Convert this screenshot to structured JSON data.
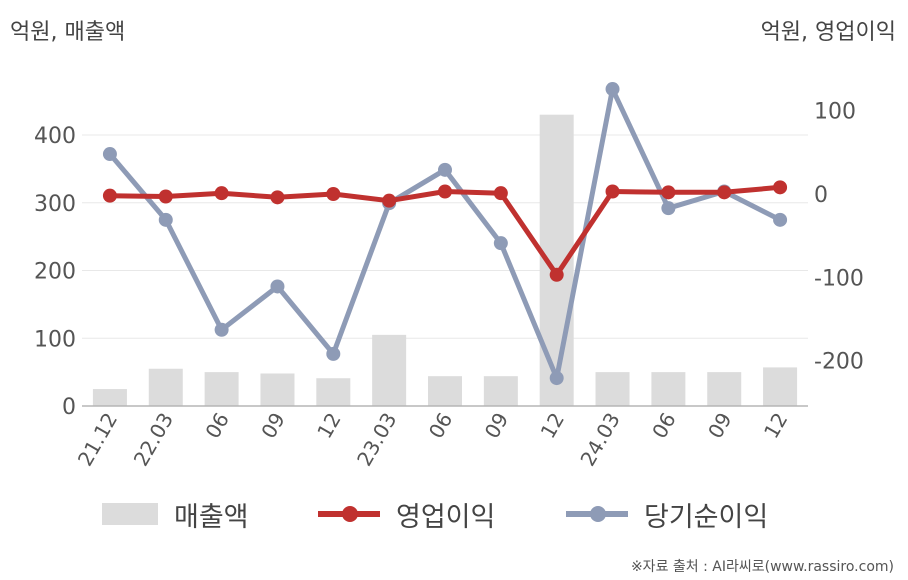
{
  "units": {
    "left": "억원, 매출액",
    "right": "억원, 영업이익"
  },
  "colors": {
    "revenue": "#dcdcdc",
    "operating": "#c0312f",
    "net": "#8e9bb6"
  },
  "legend": {
    "revenue": "매출액",
    "operating": "영업이익",
    "net": "당기순이익"
  },
  "source": "※자료 출처 : AI라씨로(www.rassiro.com)",
  "chart_data": {
    "type": "bar+line",
    "categories": [
      "21.12",
      "22.03",
      "06",
      "09",
      "12",
      "23.03",
      "06",
      "09",
      "12",
      "24.03",
      "06",
      "09",
      "12"
    ],
    "y_left": {
      "ticks": [
        0,
        100,
        200,
        300,
        400
      ],
      "range": [
        0,
        480
      ]
    },
    "y_right": {
      "ticks": [
        100,
        0,
        -100,
        -200
      ],
      "labels": [
        "100",
        "0",
        "-100",
        "-200"
      ],
      "range": [
        -255,
        160
      ]
    },
    "series": [
      {
        "name": "매출액",
        "type": "bar",
        "axis": "left",
        "values": [
          25,
          55,
          50,
          48,
          41,
          105,
          44,
          44,
          430,
          50,
          50,
          50,
          57
        ]
      },
      {
        "name": "영업이익",
        "type": "line",
        "axis": "right",
        "values": [
          -2,
          -3,
          1,
          -4,
          0,
          -8,
          3,
          1,
          -97,
          3,
          2,
          2,
          8
        ]
      },
      {
        "name": "당기순이익",
        "type": "line",
        "axis": "right",
        "values": [
          48,
          -31,
          -163,
          -111,
          -192,
          -11,
          29,
          -59,
          -221,
          126,
          -17,
          3,
          -31
        ]
      }
    ]
  }
}
